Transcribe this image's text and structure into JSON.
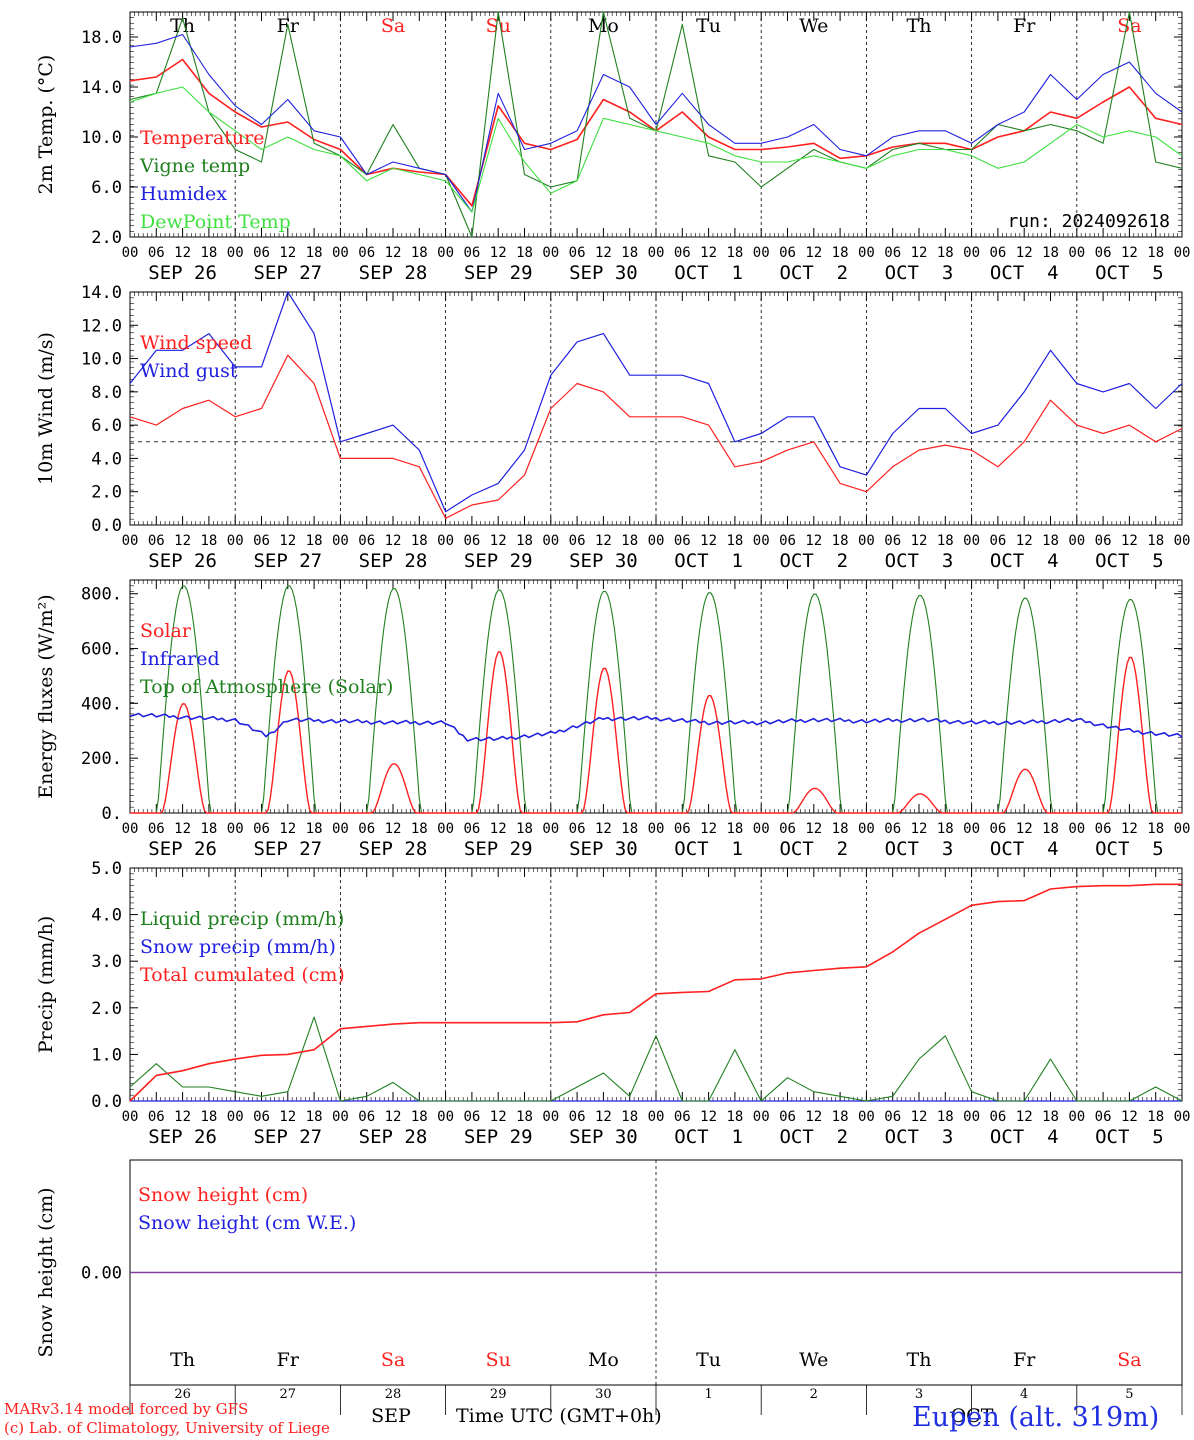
{
  "colors": {
    "red": "#ff2020",
    "green": "#208020",
    "blue": "#2020e0",
    "lightgreen": "#40e040",
    "purple": "#8040a0",
    "weekend": "#ff2020",
    "weekday": "#000000"
  },
  "weekdays": [
    "Th",
    "Fr",
    "Sa",
    "Su",
    "Mo",
    "Tu",
    "We",
    "Th",
    "Fr",
    "Sa"
  ],
  "weekend_flags": [
    false,
    false,
    true,
    true,
    false,
    false,
    false,
    false,
    false,
    true
  ],
  "date_labels": [
    "SEP 26",
    "SEP 27",
    "SEP 28",
    "SEP 29",
    "SEP 30",
    "OCT  1",
    "OCT  2",
    "OCT  3",
    "OCT  4",
    "OCT  5"
  ],
  "hour_ticks": [
    "00",
    "06",
    "12",
    "18"
  ],
  "hour_end": "00",
  "bottom_day_numbers": [
    "26",
    "27",
    "28",
    "29",
    "30",
    "1",
    "2",
    "3",
    "4",
    "5"
  ],
  "bottom_month_labels": [
    "SEP",
    "OCT"
  ],
  "footer": {
    "model": "MARv3.14 model forced by GFS",
    "lab": "(c) Lab. of Climatology, University of Liege",
    "axis_title": "Time UTC (GMT+0h)",
    "station": "Eupen (alt. 319m)"
  },
  "chart_data": [
    {
      "id": "temp",
      "type": "line",
      "ylabel": "2m Temp. (°C)",
      "yticks": [
        "2.0",
        "6.0",
        "10.0",
        "14.0",
        "18.0"
      ],
      "ylim": [
        2,
        20
      ],
      "annotation": "run: 2024092618",
      "x_days": [
        0,
        0.25,
        0.5,
        0.75,
        1,
        1.25,
        1.5,
        1.75,
        2,
        2.25,
        2.5,
        2.75,
        3,
        3.25,
        3.5,
        3.75,
        4,
        4.25,
        4.5,
        4.75,
        5,
        5.25,
        5.5,
        5.75,
        6,
        6.25,
        6.5,
        6.75,
        7,
        7.25,
        7.5,
        7.75,
        8,
        8.25,
        8.5,
        8.75,
        9,
        9.25,
        9.5,
        9.75,
        10
      ],
      "series": [
        {
          "name": "Temperature",
          "color": "#ff2020",
          "values": [
            14.5,
            14.8,
            16.2,
            13.5,
            12.0,
            10.8,
            11.2,
            9.8,
            9.0,
            7.0,
            7.5,
            7.2,
            7.0,
            4.5,
            12.5,
            9.5,
            9.0,
            9.8,
            13.0,
            12.0,
            10.5,
            12.0,
            10.0,
            9.0,
            9.0,
            9.2,
            9.5,
            8.3,
            8.5,
            9.2,
            9.5,
            9.5,
            9.0,
            10.0,
            10.5,
            12.0,
            11.5,
            12.8,
            14.0,
            11.5,
            11.0
          ]
        },
        {
          "name": "Vigne temp",
          "color": "#208020",
          "values": [
            13.0,
            13.5,
            19.5,
            12.0,
            9.0,
            8.0,
            19.0,
            9.5,
            8.5,
            7.0,
            11.0,
            7.5,
            7.0,
            2.0,
            20.0,
            7.0,
            6.0,
            6.5,
            20.0,
            11.5,
            10.5,
            19.0,
            8.5,
            8.0,
            6.0,
            7.5,
            9.0,
            8.0,
            7.5,
            9.0,
            9.5,
            9.0,
            9.0,
            11.0,
            10.5,
            11.0,
            10.5,
            9.5,
            20.0,
            8.0,
            7.5
          ]
        },
        {
          "name": "Humidex",
          "color": "#2020e0",
          "values": [
            17.2,
            17.5,
            18.2,
            15.0,
            12.5,
            11.0,
            13.0,
            10.5,
            10.0,
            7.0,
            8.0,
            7.5,
            7.0,
            4.0,
            13.5,
            9.0,
            9.5,
            10.5,
            15.0,
            14.0,
            11.0,
            13.5,
            11.0,
            9.5,
            9.5,
            10.0,
            11.0,
            9.0,
            8.5,
            10.0,
            10.5,
            10.5,
            9.5,
            11.0,
            12.0,
            15.0,
            13.0,
            15.0,
            16.0,
            13.5,
            12.0
          ]
        },
        {
          "name": "DewPoint Temp",
          "color": "#40e040",
          "values": [
            12.8,
            13.5,
            14.0,
            12.0,
            10.5,
            9.0,
            10.0,
            9.0,
            8.5,
            6.5,
            7.5,
            7.0,
            6.5,
            4.0,
            11.5,
            8.0,
            5.5,
            6.5,
            11.5,
            11.0,
            10.5,
            10.0,
            9.5,
            8.5,
            8.0,
            8.0,
            8.5,
            8.0,
            7.5,
            8.5,
            9.0,
            9.0,
            8.5,
            7.5,
            8.0,
            9.5,
            11.0,
            10.0,
            10.5,
            10.0,
            8.5
          ]
        }
      ]
    },
    {
      "id": "wind",
      "type": "line",
      "ylabel": "10m Wind (m/s)",
      "yticks": [
        "0.0",
        "2.0",
        "4.0",
        "6.0",
        "8.0",
        "10.0",
        "12.0",
        "14.0"
      ],
      "ylim": [
        0,
        14
      ],
      "threshold": 5,
      "x_days": [
        0,
        0.25,
        0.5,
        0.75,
        1,
        1.25,
        1.5,
        1.75,
        2,
        2.25,
        2.5,
        2.75,
        3,
        3.25,
        3.5,
        3.75,
        4,
        4.25,
        4.5,
        4.75,
        5,
        5.25,
        5.5,
        5.75,
        6,
        6.25,
        6.5,
        6.75,
        7,
        7.25,
        7.5,
        7.75,
        8,
        8.25,
        8.5,
        8.75,
        9,
        9.25,
        9.5,
        9.75,
        10
      ],
      "series": [
        {
          "name": "Wind speed",
          "color": "#ff2020",
          "values": [
            6.5,
            6.0,
            7.0,
            7.5,
            6.5,
            7.0,
            10.2,
            8.5,
            4.0,
            4.0,
            4.0,
            3.5,
            0.4,
            1.2,
            1.5,
            3.0,
            7.0,
            8.5,
            8.0,
            6.5,
            6.5,
            6.5,
            6.0,
            3.5,
            3.8,
            4.5,
            5.0,
            2.5,
            2.0,
            3.5,
            4.5,
            4.8,
            4.5,
            3.5,
            5.0,
            7.5,
            6.0,
            5.5,
            6.0,
            5.0,
            5.8
          ]
        },
        {
          "name": "Wind gust",
          "color": "#2020e0",
          "values": [
            8.5,
            10.5,
            10.5,
            11.5,
            9.5,
            9.5,
            14.0,
            11.5,
            5.0,
            5.5,
            6.0,
            4.5,
            0.8,
            1.8,
            2.5,
            4.5,
            9.0,
            11.0,
            11.5,
            9.0,
            9.0,
            9.0,
            8.5,
            5.0,
            5.5,
            6.5,
            6.5,
            3.5,
            3.0,
            5.5,
            7.0,
            7.0,
            5.5,
            6.0,
            8.0,
            10.5,
            8.5,
            8.0,
            8.5,
            7.0,
            8.5
          ]
        }
      ]
    },
    {
      "id": "energy",
      "type": "line",
      "ylabel": "Energy fluxes (W/m²)",
      "yticks": [
        "0.",
        "200.",
        "400.",
        "600.",
        "800."
      ],
      "ylim": [
        0,
        850
      ],
      "legend": [
        {
          "name": "Solar",
          "color": "#ff2020"
        },
        {
          "name": "Infrared",
          "color": "#2020e0"
        },
        {
          "name": "Top of Atmosphere (Solar)",
          "color": "#208020"
        }
      ],
      "toa_peaks": [
        830,
        830,
        820,
        815,
        810,
        805,
        800,
        795,
        785,
        780
      ],
      "solar_peaks": [
        400,
        520,
        180,
        590,
        530,
        430,
        90,
        70,
        160,
        570
      ],
      "infrared_x": [
        0,
        0.5,
        1,
        1.3,
        1.5,
        2,
        2.5,
        3,
        3.2,
        3.5,
        4,
        4.5,
        5,
        5.5,
        6,
        6.5,
        7,
        7.5,
        8,
        8.5,
        9,
        9.5,
        10
      ],
      "infrared_values": [
        360,
        350,
        340,
        280,
        340,
        335,
        330,
        330,
        270,
        270,
        290,
        345,
        345,
        330,
        330,
        340,
        335,
        340,
        330,
        330,
        340,
        300,
        280
      ]
    },
    {
      "id": "precip",
      "type": "line",
      "ylabel": "Precip (mm/h)",
      "yticks": [
        "0.0",
        "1.0",
        "2.0",
        "3.0",
        "4.0",
        "5.0"
      ],
      "ylim": [
        0,
        5
      ],
      "legend": [
        {
          "name": "Liquid precip (mm/h)",
          "color": "#208020"
        },
        {
          "name": "Snow precip (mm/h)",
          "color": "#2020e0"
        },
        {
          "name": "Total cumulated (cm)",
          "color": "#ff2020"
        }
      ],
      "x_days": [
        0,
        0.25,
        0.5,
        0.75,
        1,
        1.25,
        1.5,
        1.75,
        2,
        2.25,
        2.5,
        2.75,
        3,
        3.25,
        3.5,
        3.75,
        4,
        4.25,
        4.5,
        4.75,
        5,
        5.25,
        5.5,
        5.75,
        6,
        6.25,
        6.5,
        6.75,
        7,
        7.25,
        7.5,
        7.75,
        8,
        8.25,
        8.5,
        8.75,
        9,
        9.25,
        9.5,
        9.75,
        10
      ],
      "series": [
        {
          "name": "Liquid precip (mm/h)",
          "color": "#208020",
          "values": [
            0.3,
            0.8,
            0.3,
            0.3,
            0.2,
            0.1,
            0.2,
            1.8,
            0.0,
            0.1,
            0.4,
            0.0,
            0.0,
            0.0,
            0.0,
            0.0,
            0.0,
            0.3,
            0.6,
            0.1,
            1.4,
            0.0,
            0.0,
            1.1,
            0.0,
            0.5,
            0.2,
            0.1,
            0.0,
            0.1,
            0.9,
            1.4,
            0.2,
            0.0,
            0.0,
            0.9,
            0.0,
            0.0,
            0.0,
            0.3,
            0.0
          ]
        },
        {
          "name": "Total cumulated (cm)",
          "color": "#ff2020",
          "values": [
            0.0,
            0.55,
            0.65,
            0.8,
            0.9,
            0.98,
            1.0,
            1.1,
            1.55,
            1.6,
            1.65,
            1.68,
            1.68,
            1.68,
            1.68,
            1.68,
            1.68,
            1.7,
            1.85,
            1.9,
            2.3,
            2.33,
            2.35,
            2.6,
            2.62,
            2.75,
            2.8,
            2.85,
            2.88,
            3.2,
            3.6,
            3.9,
            4.2,
            4.28,
            4.3,
            4.55,
            4.6,
            4.62,
            4.62,
            4.65,
            4.65
          ]
        }
      ]
    },
    {
      "id": "snow",
      "type": "line",
      "ylabel": "Snow height (cm)",
      "yticks": [
        "0.00"
      ],
      "ylim": [
        -1,
        1
      ],
      "legend": [
        {
          "name": "Snow height (cm)",
          "color": "#ff2020"
        },
        {
          "name": "Snow height (cm W.E.)",
          "color": "#2020e0"
        }
      ],
      "series": [
        {
          "name": "Snow height (cm)",
          "color": "#8040a0",
          "values": [
            0,
            0
          ]
        }
      ]
    }
  ]
}
